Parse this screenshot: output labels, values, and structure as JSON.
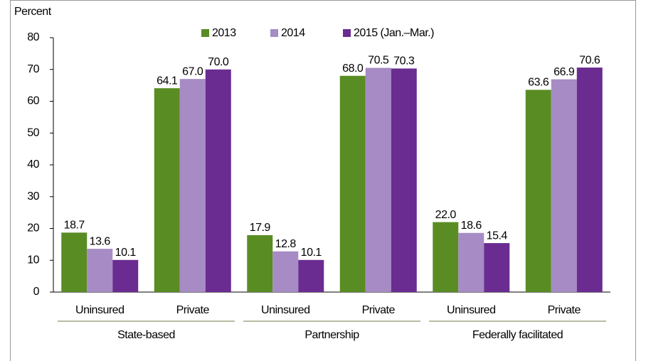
{
  "chart_data": {
    "type": "bar",
    "y_label": "Percent",
    "categories": [
      "Uninsured",
      "Private",
      "Uninsured",
      "Private",
      "Uninsured",
      "Private"
    ],
    "groups": [
      "State-based",
      "Partnership",
      "Federally facilitated"
    ],
    "series": [
      {
        "name": "2013",
        "color": "#5a8c24",
        "values": [
          18.7,
          64.1,
          17.9,
          68.0,
          22.0,
          63.6
        ],
        "value_labels": [
          "18.7",
          "64.1",
          "17.9",
          "68.0",
          "22.0",
          "63.6"
        ]
      },
      {
        "name": "2014",
        "color": "#a68bc4",
        "values": [
          13.6,
          67.0,
          12.8,
          70.5,
          18.6,
          66.9
        ],
        "value_labels": [
          "13.6",
          "67.0",
          "12.8",
          "70.5",
          "18.6",
          "66.9"
        ]
      },
      {
        "name": "2015 (Jan.–Mar.)",
        "color": "#6a2c91",
        "values": [
          10.1,
          70.0,
          10.1,
          70.3,
          15.4,
          70.6
        ],
        "value_labels": [
          "10.1",
          "70.0",
          "10.1",
          "70.3",
          "15.4",
          "70.6"
        ]
      }
    ],
    "ylim": [
      0,
      80
    ],
    "yticks": [
      0,
      10,
      20,
      30,
      40,
      50,
      60,
      70,
      80
    ],
    "grid": false,
    "legend": "top"
  }
}
